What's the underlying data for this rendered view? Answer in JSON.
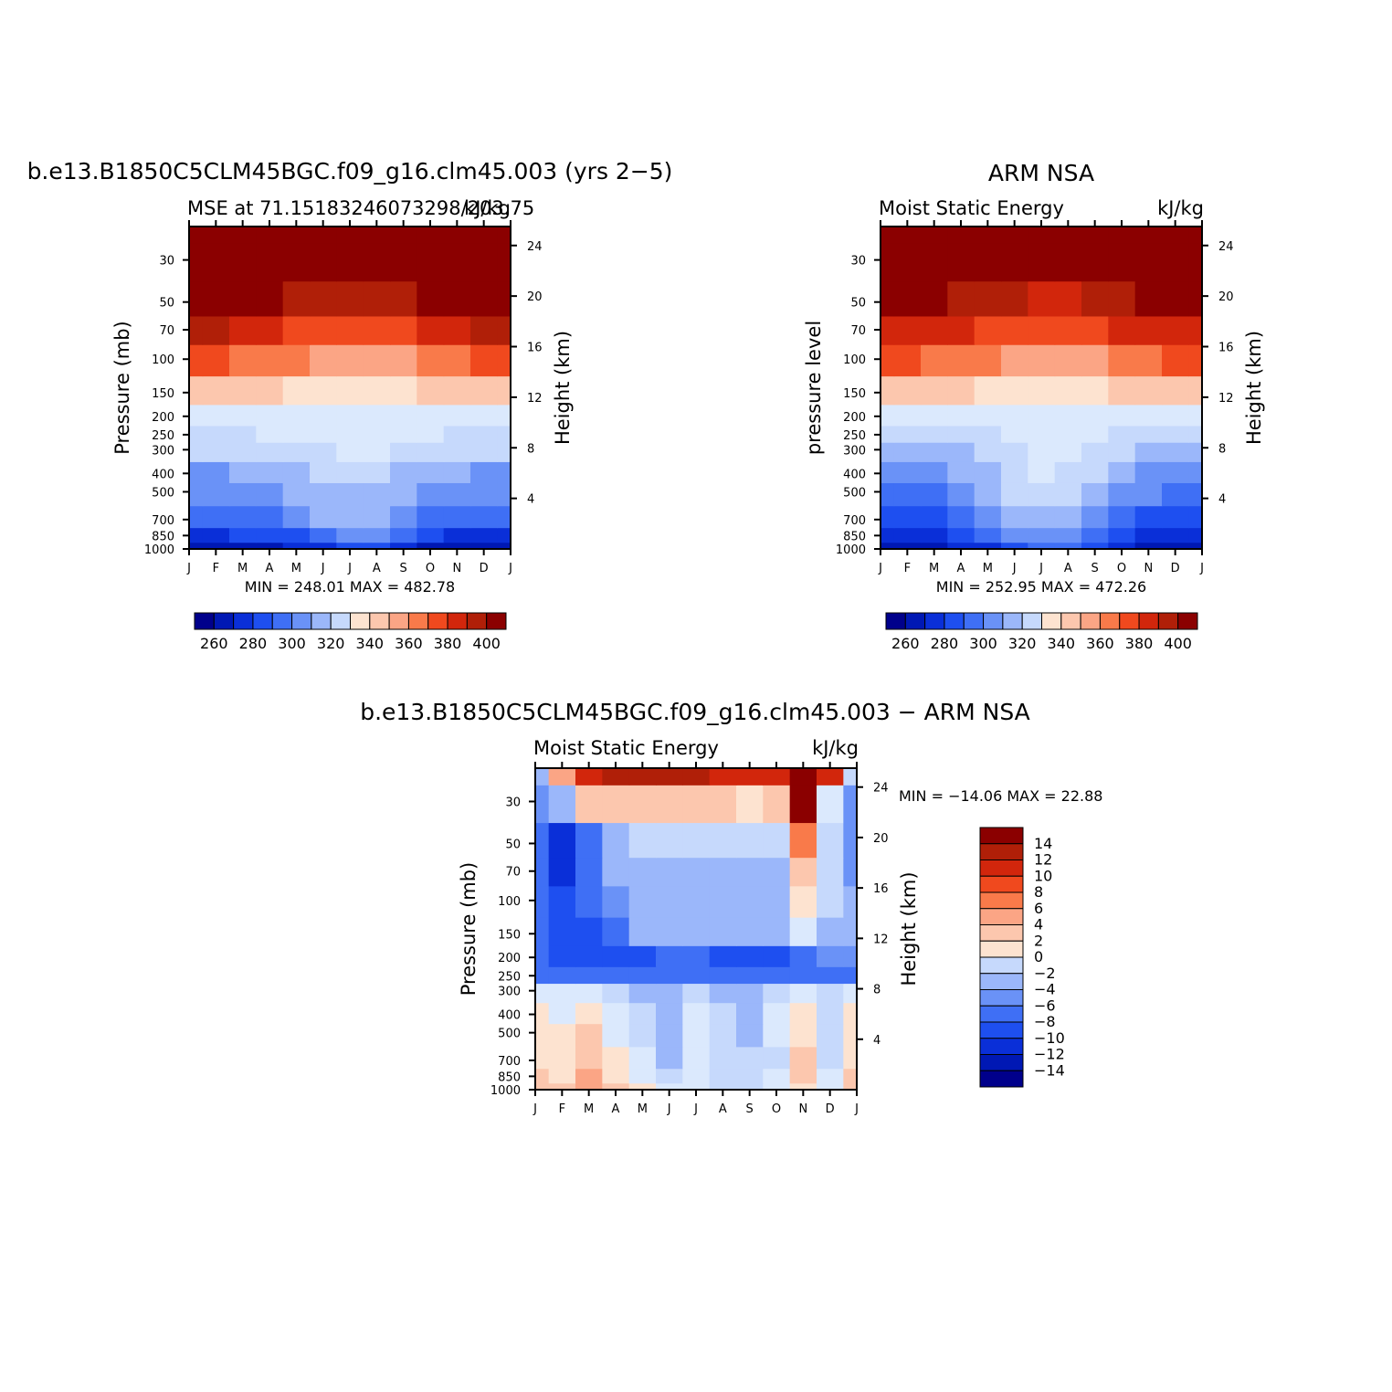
{
  "chart_data": [
    {
      "type": "heatmap",
      "title": "b.e13.B1850C5CLM45BGC.f09_g16.clm45.003 (yrs 2−5)",
      "left_string": "MSE at 71.15183246073298/203.75",
      "right_string": "kJ/kg",
      "ylabel": "Pressure (mb)",
      "y2label": "Height (km)",
      "stats": "MIN = 248.01  MAX = 482.78",
      "x_ticks": [
        "J",
        "F",
        "M",
        "A",
        "M",
        "J",
        "J",
        "A",
        "S",
        "O",
        "N",
        "D",
        "J"
      ],
      "y_ticks": [
        30,
        50,
        70,
        100,
        150,
        200,
        250,
        300,
        400,
        500,
        700,
        850,
        1000
      ],
      "y2_ticks": [
        24,
        20,
        16,
        12,
        8,
        4
      ],
      "y_scale": "log",
      "ylim": [
        1000,
        20
      ],
      "colorbar_ticks": [
        260,
        280,
        300,
        320,
        340,
        360,
        380,
        400
      ],
      "levels": [
        250,
        260,
        270,
        280,
        290,
        300,
        310,
        320,
        330,
        340,
        350,
        360,
        370,
        380,
        390,
        400,
        410
      ],
      "values_desc": "MSE (kJ/kg) by month: interior bands of (pressure mb) for levels 260..400",
      "bands": {
        "p_levels": [
          1000,
          850,
          700,
          500,
          400,
          300,
          250,
          200,
          150,
          100,
          70,
          50,
          30,
          20
        ],
        "mse": [
          [
            255,
            255,
            256,
            258,
            262,
            268,
            272,
            270,
            262,
            258,
            256,
            255,
            255
          ],
          [
            268,
            268,
            270,
            273,
            278,
            288,
            293,
            290,
            280,
            272,
            269,
            268,
            268
          ],
          [
            282,
            282,
            284,
            288,
            293,
            300,
            304,
            302,
            295,
            287,
            284,
            282,
            282
          ],
          [
            290,
            290,
            292,
            296,
            300,
            306,
            309,
            308,
            302,
            295,
            292,
            290,
            290
          ],
          [
            298,
            298,
            300,
            303,
            306,
            311,
            314,
            313,
            309,
            303,
            300,
            298,
            298
          ],
          [
            311,
            311,
            312,
            314,
            316,
            318,
            320,
            320,
            318,
            315,
            312,
            311,
            311
          ],
          [
            318,
            318,
            319,
            320,
            321,
            323,
            324,
            324,
            323,
            320,
            319,
            318,
            318
          ],
          [
            326,
            326,
            326,
            326,
            326,
            327,
            327,
            327,
            326,
            326,
            326,
            326,
            326
          ],
          [
            346,
            346,
            344,
            342,
            339,
            335,
            334,
            335,
            337,
            341,
            344,
            346,
            346
          ],
          [
            372,
            372,
            369,
            366,
            361,
            356,
            354,
            355,
            358,
            364,
            368,
            372,
            372
          ],
          [
            390,
            390,
            387,
            384,
            379,
            373,
            371,
            372,
            376,
            382,
            386,
            390,
            390
          ],
          [
            410,
            410,
            407,
            404,
            399,
            393,
            390,
            391,
            396,
            402,
            406,
            410,
            410
          ],
          [
            450,
            450,
            446,
            442,
            436,
            430,
            428,
            429,
            434,
            440,
            444,
            450,
            450
          ],
          [
            480,
            480,
            478,
            476,
            472,
            468,
            466,
            467,
            470,
            474,
            477,
            480,
            480
          ]
        ]
      }
    },
    {
      "type": "heatmap",
      "title": "ARM NSA",
      "left_string": "Moist Static Energy",
      "right_string": "kJ/kg",
      "ylabel": "pressure level",
      "y2label": "Height (km)",
      "stats": "MIN = 252.95  MAX = 472.26",
      "x_ticks": [
        "J",
        "F",
        "M",
        "A",
        "M",
        "J",
        "J",
        "A",
        "S",
        "O",
        "N",
        "D",
        "J"
      ],
      "y_ticks": [
        30,
        50,
        70,
        100,
        150,
        200,
        250,
        300,
        400,
        500,
        700,
        850,
        1000
      ],
      "y2_ticks": [
        24,
        20,
        16,
        12,
        8,
        4
      ],
      "y_scale": "log",
      "ylim": [
        1000,
        20
      ],
      "colorbar_ticks": [
        260,
        280,
        300,
        320,
        340,
        360,
        380,
        400
      ],
      "levels": [
        250,
        260,
        270,
        280,
        290,
        300,
        310,
        320,
        330,
        340,
        350,
        360,
        370,
        380,
        390,
        400,
        410
      ],
      "bands": {
        "p_levels": [
          1000,
          850,
          700,
          500,
          400,
          300,
          250,
          200,
          150,
          100,
          70,
          50,
          30,
          20
        ],
        "mse": [
          [
            258,
            258,
            259,
            262,
            268,
            276,
            282,
            280,
            272,
            263,
            259,
            258,
            258
          ],
          [
            266,
            266,
            268,
            272,
            280,
            292,
            298,
            296,
            286,
            275,
            269,
            266,
            266
          ],
          [
            276,
            276,
            278,
            283,
            291,
            302,
            308,
            306,
            297,
            286,
            279,
            276,
            276
          ],
          [
            287,
            287,
            289,
            294,
            301,
            311,
            316,
            314,
            306,
            297,
            290,
            287,
            287
          ],
          [
            295,
            295,
            297,
            301,
            307,
            316,
            320,
            319,
            312,
            304,
            298,
            295,
            295
          ],
          [
            305,
            305,
            306,
            309,
            313,
            319,
            322,
            321,
            317,
            311,
            307,
            305,
            305
          ],
          [
            313,
            313,
            314,
            316,
            318,
            322,
            324,
            323,
            321,
            318,
            315,
            313,
            313
          ],
          [
            322,
            322,
            322,
            323,
            324,
            326,
            327,
            327,
            325,
            324,
            323,
            322,
            322
          ],
          [
            344,
            344,
            343,
            341,
            339,
            336,
            335,
            336,
            338,
            341,
            343,
            344,
            344
          ],
          [
            370,
            370,
            368,
            365,
            361,
            357,
            355,
            356,
            359,
            364,
            368,
            370,
            370
          ],
          [
            388,
            388,
            386,
            383,
            379,
            374,
            372,
            373,
            377,
            382,
            386,
            388,
            388
          ],
          [
            404,
            404,
            402,
            399,
            395,
            390,
            388,
            389,
            393,
            398,
            402,
            404,
            404
          ],
          [
            440,
            440,
            437,
            434,
            430,
            426,
            424,
            425,
            429,
            433,
            437,
            440,
            440
          ],
          [
            470,
            470,
            468,
            466,
            463,
            460,
            458,
            459,
            462,
            465,
            468,
            470,
            470
          ]
        ]
      }
    },
    {
      "type": "heatmap",
      "title": "b.e13.B1850C5CLM45BGC.f09_g16.clm45.003 − ARM NSA",
      "left_string": "Moist Static Energy",
      "right_string": "kJ/kg",
      "ylabel": "Pressure (mb)",
      "y2label": "Height (km)",
      "stats": "MIN = −14.06  MAX =   22.88",
      "x_ticks": [
        "J",
        "F",
        "M",
        "A",
        "M",
        "J",
        "J",
        "A",
        "S",
        "O",
        "N",
        "D",
        "J"
      ],
      "y_ticks": [
        30,
        50,
        70,
        100,
        150,
        200,
        250,
        300,
        400,
        500,
        700,
        850,
        1000
      ],
      "y2_ticks": [
        24,
        20,
        16,
        12,
        8,
        4
      ],
      "y_scale": "log",
      "ylim": [
        1000,
        20
      ],
      "colorbar_ticks": [
        "14",
        "12",
        "10",
        "8",
        "6",
        "4",
        "2",
        "0",
        "−2",
        "−4",
        "−6",
        "−8",
        "−10",
        "−12",
        "−14"
      ],
      "levels": [
        -16,
        -14,
        -12,
        -10,
        -8,
        -6,
        -4,
        -2,
        0,
        2,
        4,
        6,
        8,
        10,
        12,
        14,
        16
      ],
      "bands": {
        "p_levels": [
          1000,
          850,
          700,
          500,
          400,
          300,
          250,
          200,
          150,
          100,
          70,
          50,
          30,
          20
        ],
        "diff": [
          [
            3,
            2,
            5,
            2,
            0,
            -2,
            -1,
            -4,
            -3,
            -2,
            1,
            -1,
            2
          ],
          [
            2,
            1,
            4,
            1,
            -1,
            -4,
            -2,
            -3,
            -4,
            -2,
            3,
            -2,
            2
          ],
          [
            1,
            1,
            3,
            0,
            -2,
            -5,
            -2,
            -3,
            -4,
            -3,
            2,
            -3,
            1
          ],
          [
            0,
            0,
            2,
            -1,
            -3,
            -6,
            -1,
            -4,
            -5,
            -2,
            1,
            -4,
            0
          ],
          [
            0,
            -1,
            1,
            -2,
            -4,
            -5,
            -1,
            -4,
            -5,
            -2,
            1,
            -4,
            0
          ],
          [
            -1,
            -2,
            -1,
            -3,
            -5,
            -6,
            -3,
            -5,
            -5,
            -3,
            -1,
            -3,
            -2
          ],
          [
            -9,
            -10,
            -10,
            -10,
            -10,
            -10,
            -9,
            -10,
            -10,
            -10,
            -9,
            -9,
            -9
          ],
          [
            -10,
            -12,
            -12,
            -11,
            -11,
            -10,
            -10,
            -11,
            -12,
            -11,
            -9,
            -8,
            -8
          ],
          [
            -9,
            -11,
            -11,
            -9,
            -6,
            -6,
            -6,
            -6,
            -6,
            -6,
            -2,
            -5,
            -6
          ],
          [
            -9,
            -12,
            -10,
            -7,
            -5,
            -5,
            -5,
            -5,
            -5,
            -5,
            0,
            -4,
            -6
          ],
          [
            -9,
            -13,
            -10,
            -6,
            -5,
            -5,
            -5,
            -5,
            -5,
            -6,
            2,
            -4,
            -7
          ],
          [
            -9,
            -13,
            -10,
            -5,
            -3,
            -3,
            -3,
            -3,
            -3,
            -4,
            6,
            -3,
            -8
          ],
          [
            -8,
            -5,
            2,
            3,
            2,
            3,
            3,
            2,
            1,
            2,
            14,
            -1,
            -7
          ],
          [
            -6,
            4,
            10,
            12,
            12,
            12,
            12,
            10,
            10,
            11,
            23,
            10,
            -4
          ]
        ]
      }
    }
  ]
}
